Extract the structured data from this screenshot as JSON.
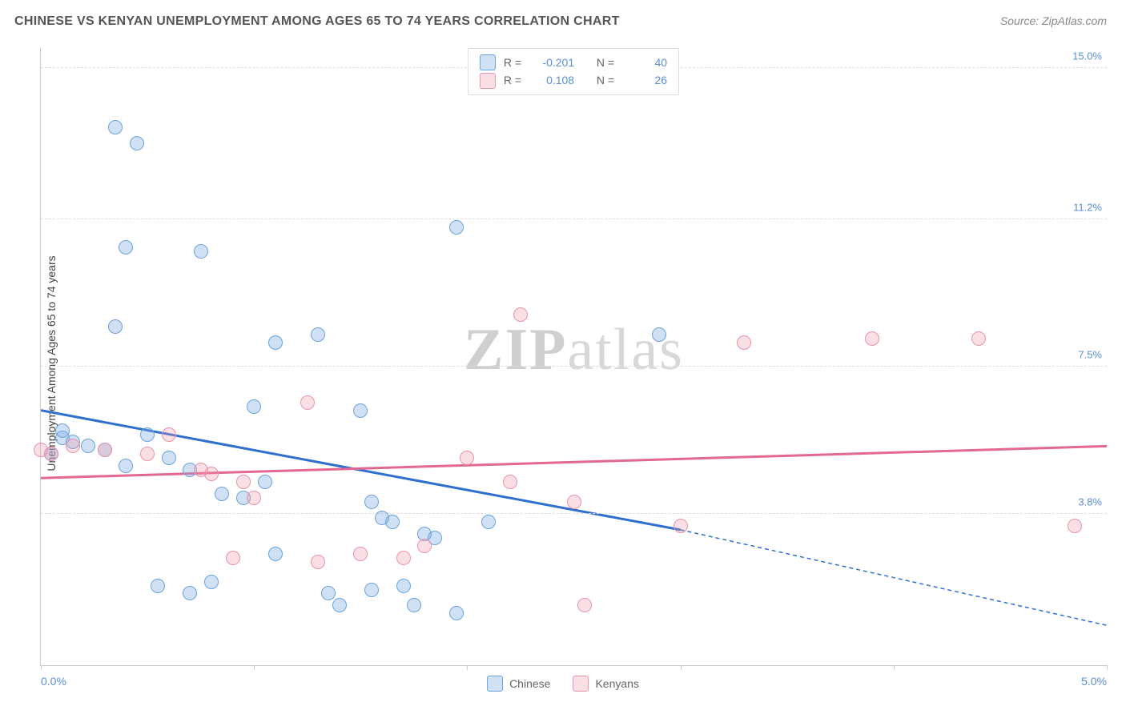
{
  "title": "CHINESE VS KENYAN UNEMPLOYMENT AMONG AGES 65 TO 74 YEARS CORRELATION CHART",
  "source_label": "Source: ZipAtlas.com",
  "y_axis_label": "Unemployment Among Ages 65 to 74 years",
  "watermark": {
    "bold": "ZIP",
    "light": "atlas"
  },
  "colors": {
    "blue_fill": "rgba(120,170,225,0.35)",
    "blue_stroke": "#6ba3dd",
    "pink_fill": "rgba(240,150,170,0.3)",
    "pink_stroke": "#e894aa",
    "blue_line": "#2f6fd0",
    "pink_line": "#e26890",
    "tick_text": "#5b8fd6",
    "grid": "#dddddd"
  },
  "chart": {
    "type": "scatter",
    "xlim": [
      0,
      5
    ],
    "ylim": [
      0,
      15.5
    ],
    "x_ticks": [
      0,
      1,
      2,
      3,
      4,
      5
    ],
    "x_tick_labels": {
      "0": "0.0%",
      "5": "5.0%"
    },
    "y_gridlines": [
      3.8,
      7.5,
      11.2,
      15.0
    ],
    "y_tick_labels": [
      "3.8%",
      "7.5%",
      "11.2%",
      "15.0%"
    ],
    "point_radius": 9,
    "series": [
      {
        "name": "Chinese",
        "color_key": "blue",
        "R": "-0.201",
        "N": "40",
        "points": [
          [
            0.35,
            13.5
          ],
          [
            0.45,
            13.1
          ],
          [
            0.4,
            10.5
          ],
          [
            0.75,
            10.4
          ],
          [
            0.35,
            8.5
          ],
          [
            1.95,
            11.0
          ],
          [
            1.1,
            8.1
          ],
          [
            1.3,
            8.3
          ],
          [
            1.5,
            6.4
          ],
          [
            0.1,
            5.7
          ],
          [
            0.15,
            5.6
          ],
          [
            0.22,
            5.5
          ],
          [
            0.3,
            5.4
          ],
          [
            0.05,
            5.3
          ],
          [
            0.4,
            5.0
          ],
          [
            0.6,
            5.2
          ],
          [
            0.7,
            4.9
          ],
          [
            0.85,
            4.3
          ],
          [
            0.95,
            4.2
          ],
          [
            1.0,
            6.5
          ],
          [
            1.05,
            4.6
          ],
          [
            1.1,
            2.8
          ],
          [
            1.35,
            1.8
          ],
          [
            1.4,
            1.5
          ],
          [
            1.55,
            1.9
          ],
          [
            1.55,
            4.1
          ],
          [
            1.6,
            3.7
          ],
          [
            1.65,
            3.6
          ],
          [
            1.7,
            2.0
          ],
          [
            1.75,
            1.5
          ],
          [
            1.8,
            3.3
          ],
          [
            1.85,
            3.2
          ],
          [
            1.95,
            1.3
          ],
          [
            2.1,
            3.6
          ],
          [
            2.9,
            8.3
          ],
          [
            0.55,
            2.0
          ],
          [
            0.7,
            1.8
          ],
          [
            0.8,
            2.1
          ],
          [
            0.1,
            5.9
          ],
          [
            0.5,
            5.8
          ]
        ],
        "trend": {
          "x1": 0,
          "y1": 6.4,
          "x2": 3.0,
          "y2": 3.4,
          "dashed_to_x": 5.0,
          "dashed_to_y": 1.0
        }
      },
      {
        "name": "Kenyans",
        "color_key": "pink",
        "R": "0.108",
        "N": "26",
        "points": [
          [
            0.0,
            5.4
          ],
          [
            0.05,
            5.3
          ],
          [
            0.3,
            5.4
          ],
          [
            0.5,
            5.3
          ],
          [
            0.6,
            5.8
          ],
          [
            0.8,
            4.8
          ],
          [
            0.95,
            4.6
          ],
          [
            1.0,
            4.2
          ],
          [
            1.25,
            6.6
          ],
          [
            1.3,
            2.6
          ],
          [
            1.5,
            2.8
          ],
          [
            1.7,
            2.7
          ],
          [
            1.8,
            3.0
          ],
          [
            2.0,
            5.2
          ],
          [
            2.2,
            4.6
          ],
          [
            2.25,
            8.8
          ],
          [
            2.5,
            4.1
          ],
          [
            2.55,
            1.5
          ],
          [
            3.0,
            3.5
          ],
          [
            3.3,
            8.1
          ],
          [
            3.9,
            8.2
          ],
          [
            4.4,
            8.2
          ],
          [
            4.85,
            3.5
          ],
          [
            0.15,
            5.5
          ],
          [
            0.75,
            4.9
          ],
          [
            0.9,
            2.7
          ]
        ],
        "trend": {
          "x1": 0,
          "y1": 4.7,
          "x2": 5.0,
          "y2": 5.5
        }
      }
    ]
  },
  "top_legend": {
    "rows": [
      {
        "swatch": "blue",
        "r_label": "R =",
        "r_val": "-0.201",
        "n_label": "N =",
        "n_val": "40"
      },
      {
        "swatch": "pink",
        "r_label": "R =",
        "r_val": "0.108",
        "n_label": "N =",
        "n_val": "26"
      }
    ]
  },
  "bottom_legend": [
    {
      "swatch": "blue",
      "label": "Chinese"
    },
    {
      "swatch": "pink",
      "label": "Kenyans"
    }
  ]
}
